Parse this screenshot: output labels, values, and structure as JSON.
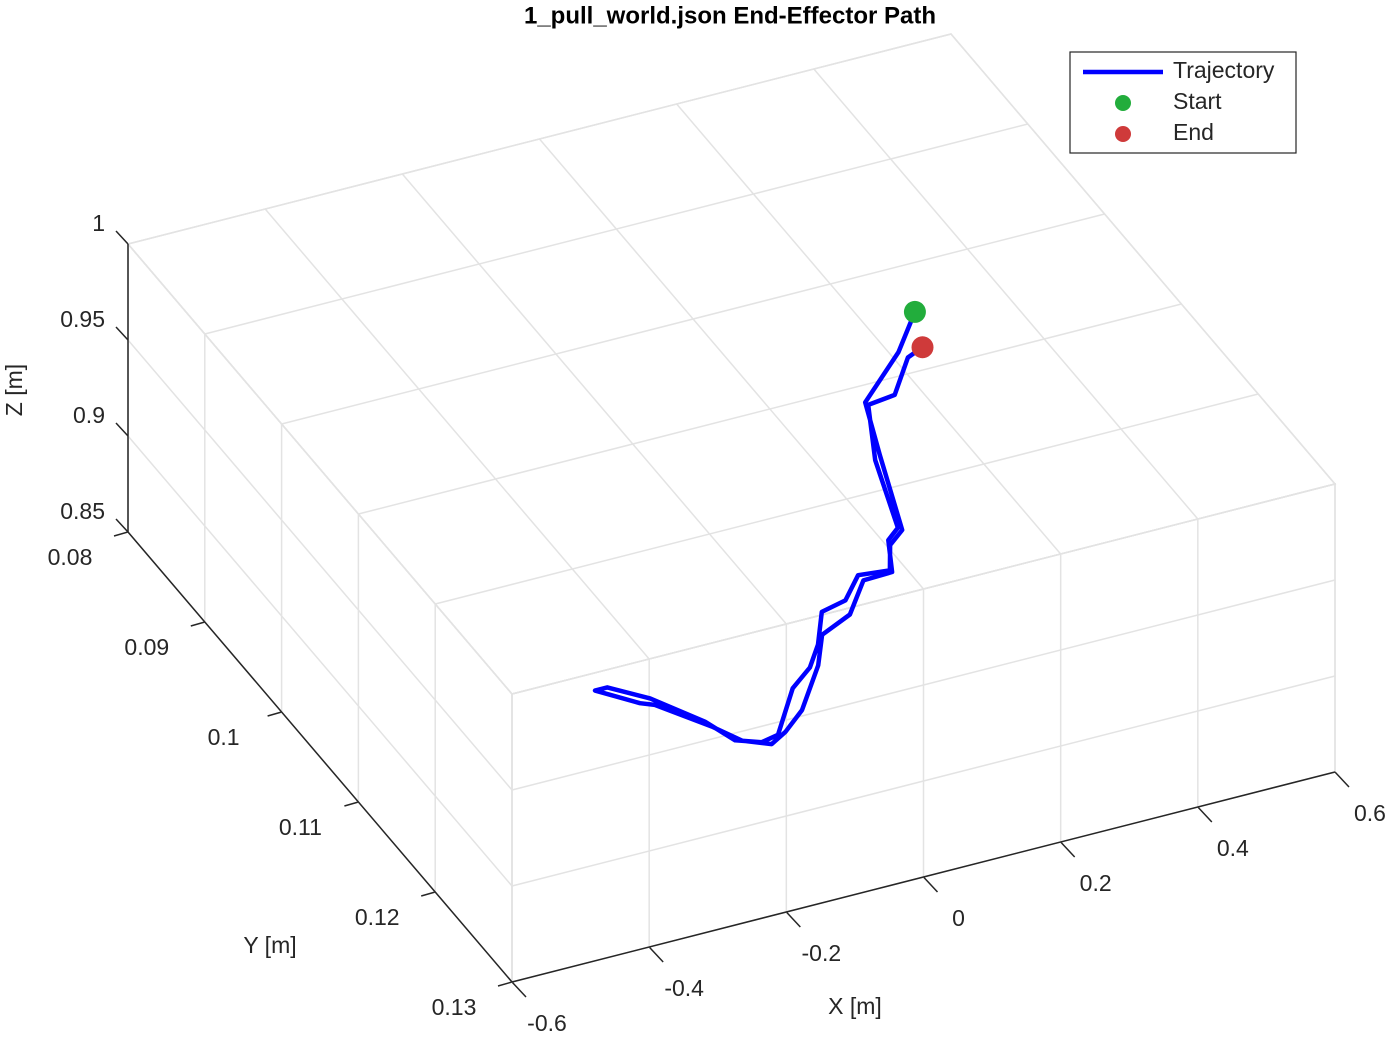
{
  "chart_data": {
    "type": "line3d",
    "title": "1_pull_world.json End-Effector Path",
    "xlabel": "X [m]",
    "ylabel": "Y [m]",
    "zlabel": "Z [m]",
    "xlim": [
      -0.6,
      0.6
    ],
    "ylim": [
      0.08,
      0.13
    ],
    "zlim": [
      0.85,
      1
    ],
    "xticks": [
      -0.6,
      -0.4,
      -0.2,
      0,
      0.2,
      0.4,
      0.6
    ],
    "yticks": [
      0.08,
      0.09,
      0.1,
      0.11,
      0.12,
      0.13
    ],
    "zticks": [
      0.85,
      0.9,
      0.95,
      1
    ],
    "grid": true,
    "legend": "upper right",
    "series": [
      {
        "name": "Trajectory",
        "color": "#0000ff",
        "mode": "line",
        "x": [
          0.469,
          0.408,
          0.317,
          0.281,
          0.231,
          0.201,
          0.175,
          0.132,
          0.091,
          0.051,
          0.013,
          -0.02,
          -0.062,
          -0.127,
          -0.154,
          -0.184,
          -0.201,
          -0.243,
          -0.283,
          -0.301,
          -0.26,
          -0.244,
          -0.198,
          -0.176,
          -0.144,
          -0.115,
          -0.073,
          -0.008,
          0.028,
          0.082,
          0.133,
          0.176,
          0.204,
          0.228,
          0.27,
          0.318,
          0.36,
          0.414,
          0.442
        ],
        "y": [
          0.087,
          0.0903,
          0.0941,
          0.0992,
          0.1066,
          0.1077,
          0.11,
          0.1097,
          0.1117,
          0.1122,
          0.1151,
          0.117,
          0.1185,
          0.1224,
          0.1227,
          0.1219,
          0.1195,
          0.1161,
          0.1141,
          0.1141,
          0.1163,
          0.1168,
          0.1201,
          0.1221,
          0.1231,
          0.1223,
          0.1207,
          0.117,
          0.1143,
          0.1131,
          0.1103,
          0.1102,
          0.1072,
          0.1063,
          0.0996,
          0.0944,
          0.0941,
          0.091,
          0.0904
        ],
        "z": [
          0.9,
          0.9,
          0.9,
          0.9,
          0.9,
          0.9,
          0.9,
          0.9,
          0.9,
          0.9,
          0.9,
          0.9,
          0.9,
          0.9,
          0.9,
          0.9,
          0.9,
          0.9,
          0.9,
          0.9,
          0.9,
          0.9,
          0.9,
          0.9,
          0.9,
          0.9,
          0.9,
          0.9,
          0.9,
          0.9,
          0.9,
          0.9,
          0.9,
          0.9,
          0.9,
          0.9,
          0.9,
          0.9,
          0.9
        ]
      },
      {
        "name": "Start",
        "color": "#22ad3c",
        "mode": "marker",
        "x": [
          0.469
        ],
        "y": [
          0.087
        ],
        "z": [
          0.9
        ]
      },
      {
        "name": "End",
        "color": "#cf3a3a",
        "mode": "marker",
        "x": [
          0.442
        ],
        "y": [
          0.0904
        ],
        "z": [
          0.9
        ]
      }
    ]
  }
}
